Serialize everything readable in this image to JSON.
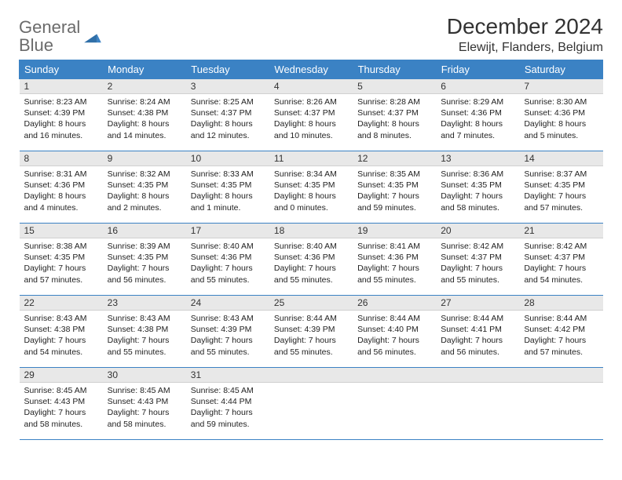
{
  "logo": {
    "word1": "General",
    "word2": "Blue"
  },
  "title": "December 2024",
  "location": "Elewijt, Flanders, Belgium",
  "colors": {
    "header_bg": "#3b82c4",
    "daynum_bg": "#e8e8e8",
    "border": "#3b82c4",
    "text": "#222222",
    "logo_gray": "#6b6b6b"
  },
  "weekdays": [
    "Sunday",
    "Monday",
    "Tuesday",
    "Wednesday",
    "Thursday",
    "Friday",
    "Saturday"
  ],
  "weeks": [
    [
      {
        "n": "1",
        "sr": "8:23 AM",
        "ss": "4:39 PM",
        "dl": "8 hours and 16 minutes."
      },
      {
        "n": "2",
        "sr": "8:24 AM",
        "ss": "4:38 PM",
        "dl": "8 hours and 14 minutes."
      },
      {
        "n": "3",
        "sr": "8:25 AM",
        "ss": "4:37 PM",
        "dl": "8 hours and 12 minutes."
      },
      {
        "n": "4",
        "sr": "8:26 AM",
        "ss": "4:37 PM",
        "dl": "8 hours and 10 minutes."
      },
      {
        "n": "5",
        "sr": "8:28 AM",
        "ss": "4:37 PM",
        "dl": "8 hours and 8 minutes."
      },
      {
        "n": "6",
        "sr": "8:29 AM",
        "ss": "4:36 PM",
        "dl": "8 hours and 7 minutes."
      },
      {
        "n": "7",
        "sr": "8:30 AM",
        "ss": "4:36 PM",
        "dl": "8 hours and 5 minutes."
      }
    ],
    [
      {
        "n": "8",
        "sr": "8:31 AM",
        "ss": "4:36 PM",
        "dl": "8 hours and 4 minutes."
      },
      {
        "n": "9",
        "sr": "8:32 AM",
        "ss": "4:35 PM",
        "dl": "8 hours and 2 minutes."
      },
      {
        "n": "10",
        "sr": "8:33 AM",
        "ss": "4:35 PM",
        "dl": "8 hours and 1 minute."
      },
      {
        "n": "11",
        "sr": "8:34 AM",
        "ss": "4:35 PM",
        "dl": "8 hours and 0 minutes."
      },
      {
        "n": "12",
        "sr": "8:35 AM",
        "ss": "4:35 PM",
        "dl": "7 hours and 59 minutes."
      },
      {
        "n": "13",
        "sr": "8:36 AM",
        "ss": "4:35 PM",
        "dl": "7 hours and 58 minutes."
      },
      {
        "n": "14",
        "sr": "8:37 AM",
        "ss": "4:35 PM",
        "dl": "7 hours and 57 minutes."
      }
    ],
    [
      {
        "n": "15",
        "sr": "8:38 AM",
        "ss": "4:35 PM",
        "dl": "7 hours and 57 minutes."
      },
      {
        "n": "16",
        "sr": "8:39 AM",
        "ss": "4:35 PM",
        "dl": "7 hours and 56 minutes."
      },
      {
        "n": "17",
        "sr": "8:40 AM",
        "ss": "4:36 PM",
        "dl": "7 hours and 55 minutes."
      },
      {
        "n": "18",
        "sr": "8:40 AM",
        "ss": "4:36 PM",
        "dl": "7 hours and 55 minutes."
      },
      {
        "n": "19",
        "sr": "8:41 AM",
        "ss": "4:36 PM",
        "dl": "7 hours and 55 minutes."
      },
      {
        "n": "20",
        "sr": "8:42 AM",
        "ss": "4:37 PM",
        "dl": "7 hours and 55 minutes."
      },
      {
        "n": "21",
        "sr": "8:42 AM",
        "ss": "4:37 PM",
        "dl": "7 hours and 54 minutes."
      }
    ],
    [
      {
        "n": "22",
        "sr": "8:43 AM",
        "ss": "4:38 PM",
        "dl": "7 hours and 54 minutes."
      },
      {
        "n": "23",
        "sr": "8:43 AM",
        "ss": "4:38 PM",
        "dl": "7 hours and 55 minutes."
      },
      {
        "n": "24",
        "sr": "8:43 AM",
        "ss": "4:39 PM",
        "dl": "7 hours and 55 minutes."
      },
      {
        "n": "25",
        "sr": "8:44 AM",
        "ss": "4:39 PM",
        "dl": "7 hours and 55 minutes."
      },
      {
        "n": "26",
        "sr": "8:44 AM",
        "ss": "4:40 PM",
        "dl": "7 hours and 56 minutes."
      },
      {
        "n": "27",
        "sr": "8:44 AM",
        "ss": "4:41 PM",
        "dl": "7 hours and 56 minutes."
      },
      {
        "n": "28",
        "sr": "8:44 AM",
        "ss": "4:42 PM",
        "dl": "7 hours and 57 minutes."
      }
    ],
    [
      {
        "n": "29",
        "sr": "8:45 AM",
        "ss": "4:43 PM",
        "dl": "7 hours and 58 minutes."
      },
      {
        "n": "30",
        "sr": "8:45 AM",
        "ss": "4:43 PM",
        "dl": "7 hours and 58 minutes."
      },
      {
        "n": "31",
        "sr": "8:45 AM",
        "ss": "4:44 PM",
        "dl": "7 hours and 59 minutes."
      },
      null,
      null,
      null,
      null
    ]
  ],
  "labels": {
    "sunrise": "Sunrise: ",
    "sunset": "Sunset: ",
    "daylight": "Daylight: "
  }
}
